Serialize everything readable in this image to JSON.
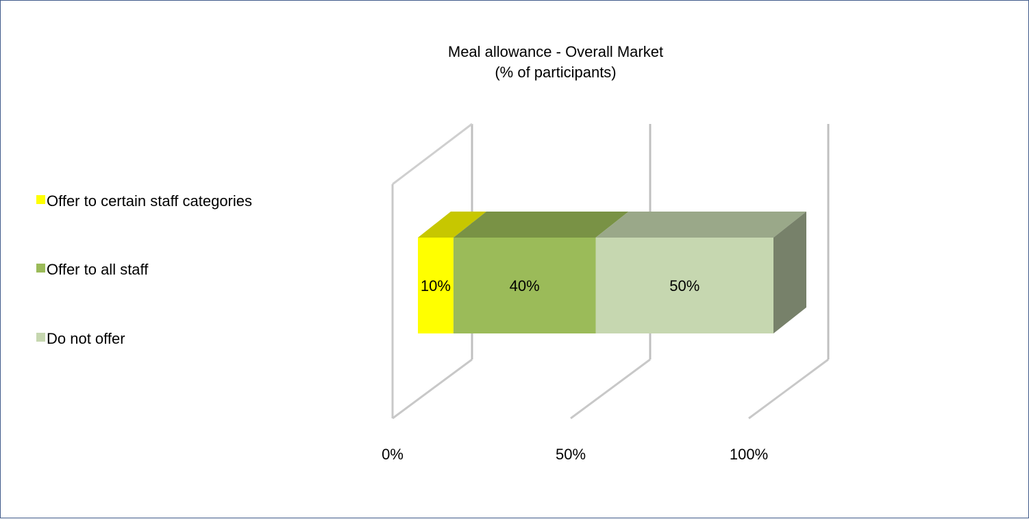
{
  "chart_data": {
    "type": "bar",
    "orientation": "horizontal",
    "stacked": true,
    "percent_stacked": true,
    "title": "Meal allowance - Overall Market",
    "subtitle": "(% of participants)",
    "categories": [
      ""
    ],
    "series": [
      {
        "name": "Offer to certain staff categories",
        "values": [
          10
        ],
        "label": "10%",
        "color": "#ffff00"
      },
      {
        "name": "Offer to all staff",
        "values": [
          40
        ],
        "label": "40%",
        "color": "#9bbb59"
      },
      {
        "name": "Do not offer",
        "values": [
          50
        ],
        "label": "50%",
        "color": "#c6d7b0"
      }
    ],
    "x_ticks": [
      "0%",
      "50%",
      "100%"
    ],
    "xlim": [
      0,
      100
    ],
    "legend_position": "left",
    "grid": true,
    "style": "3d"
  }
}
